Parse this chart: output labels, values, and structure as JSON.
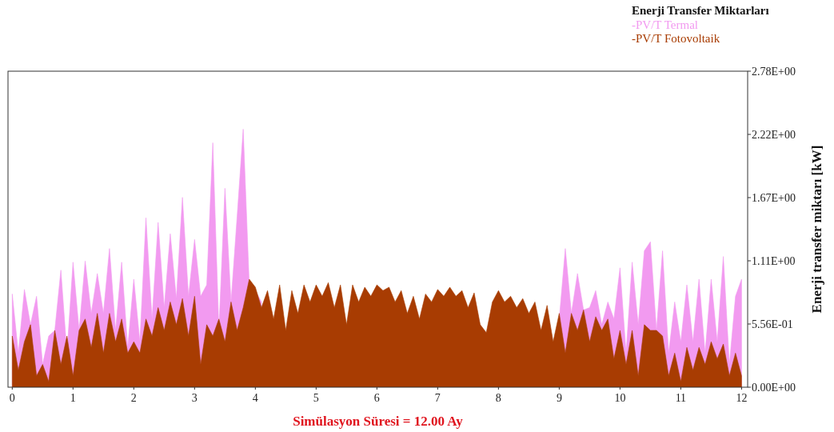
{
  "chart_data": {
    "type": "area",
    "legend_title": "Enerji Transfer Miktarları",
    "legend": "top right",
    "xlabel": "Simülasyon Süresi = 12.00 Ay",
    "ylabel": "Enerji transfer miktarı [kW]",
    "xlim": [
      -0.07,
      12.1
    ],
    "xticks": [
      0,
      1,
      2,
      3,
      4,
      5,
      6,
      7,
      8,
      9,
      10,
      11,
      12
    ],
    "ylim": [
      0,
      2.78
    ],
    "yticks": [
      {
        "value": 0,
        "label": "0.00E+00"
      },
      {
        "value": 0.556,
        "label": "5.56E-01"
      },
      {
        "value": 1.112,
        "label": "1.11E+00"
      },
      {
        "value": 1.668,
        "label": "1.67E+00"
      },
      {
        "value": 2.224,
        "label": "2.22E+00"
      },
      {
        "value": 2.78,
        "label": "2.78E+00"
      }
    ],
    "grid": false,
    "x": [
      0,
      0.1,
      0.2,
      0.3,
      0.4,
      0.5,
      0.6,
      0.7,
      0.8,
      0.9,
      1,
      1.1,
      1.2,
      1.3,
      1.4,
      1.5,
      1.6,
      1.7,
      1.8,
      1.9,
      2,
      2.1,
      2.2,
      2.3,
      2.4,
      2.5,
      2.6,
      2.7,
      2.8,
      2.9,
      3,
      3.1,
      3.2,
      3.3,
      3.4,
      3.5,
      3.6,
      3.7,
      3.8,
      3.9,
      4,
      4.1,
      4.2,
      4.3,
      4.4,
      4.5,
      4.6,
      4.7,
      4.8,
      4.9,
      5,
      5.1,
      5.2,
      5.3,
      5.4,
      5.5,
      5.6,
      5.7,
      5.8,
      5.9,
      6,
      6.1,
      6.2,
      6.3,
      6.4,
      6.5,
      6.6,
      6.7,
      6.8,
      6.9,
      7,
      7.1,
      7.2,
      7.3,
      7.4,
      7.5,
      7.6,
      7.7,
      7.8,
      7.9,
      8,
      8.1,
      8.2,
      8.3,
      8.4,
      8.5,
      8.6,
      8.7,
      8.8,
      8.9,
      9,
      9.1,
      9.2,
      9.3,
      9.4,
      9.5,
      9.6,
      9.7,
      9.8,
      9.9,
      10,
      10.1,
      10.2,
      10.3,
      10.4,
      10.5,
      10.6,
      10.7,
      10.8,
      10.9,
      11,
      11.1,
      11.2,
      11.3,
      11.4,
      11.5,
      11.6,
      11.7,
      11.8,
      11.9,
      12
    ],
    "series": [
      {
        "name": "-PV/T Termal",
        "color": "#f29af0",
        "values": [
          0.82,
          0.3,
          0.86,
          0.55,
          0.8,
          0.2,
          0.45,
          0.5,
          1.03,
          0.3,
          1.1,
          0.5,
          1.11,
          0.65,
          1.0,
          0.65,
          1.22,
          0.5,
          1.1,
          0.35,
          0.95,
          0.4,
          1.49,
          0.6,
          1.45,
          0.7,
          1.35,
          0.78,
          1.67,
          0.8,
          1.3,
          0.8,
          0.9,
          2.15,
          0.5,
          1.75,
          0.75,
          1.5,
          2.27,
          0.9,
          0.85,
          0.75,
          null,
          null,
          null,
          null,
          null,
          null,
          null,
          null,
          null,
          null,
          null,
          null,
          null,
          null,
          null,
          null,
          null,
          null,
          null,
          null,
          null,
          null,
          null,
          null,
          null,
          null,
          null,
          null,
          null,
          null,
          null,
          null,
          null,
          null,
          null,
          null,
          null,
          null,
          null,
          null,
          null,
          null,
          null,
          null,
          null,
          null,
          null,
          null,
          0.6,
          1.22,
          0.65,
          1.0,
          0.68,
          0.7,
          0.85,
          0.55,
          0.75,
          0.6,
          1.05,
          0.3,
          1.1,
          0.55,
          1.2,
          1.28,
          0.5,
          1.2,
          0.3,
          0.75,
          0.4,
          0.9,
          0.4,
          0.95,
          0.3,
          0.95,
          0.4,
          1.15,
          0.2,
          0.8,
          0.95
        ]
      },
      {
        "name": "-PV/T Fotovoltaik",
        "color": "#a83c02",
        "values": [
          0.45,
          0.15,
          0.4,
          0.55,
          0.1,
          0.2,
          0.05,
          0.5,
          0.2,
          0.45,
          0.1,
          0.5,
          0.6,
          0.35,
          0.65,
          0.3,
          0.65,
          0.4,
          0.6,
          0.3,
          0.4,
          0.3,
          0.6,
          0.45,
          0.7,
          0.5,
          0.75,
          0.55,
          0.78,
          0.45,
          0.8,
          0.2,
          0.55,
          0.45,
          0.6,
          0.4,
          0.75,
          0.5,
          0.7,
          0.95,
          0.88,
          0.7,
          0.85,
          0.6,
          0.9,
          0.5,
          0.85,
          0.65,
          0.9,
          0.75,
          0.9,
          0.8,
          0.92,
          0.7,
          0.9,
          0.55,
          0.9,
          0.75,
          0.88,
          0.8,
          0.9,
          0.85,
          0.88,
          0.75,
          0.85,
          0.65,
          0.8,
          0.6,
          0.82,
          0.75,
          0.86,
          0.8,
          0.88,
          0.8,
          0.85,
          0.7,
          0.83,
          0.55,
          0.48,
          0.75,
          0.85,
          0.75,
          0.8,
          0.7,
          0.78,
          0.65,
          0.75,
          0.5,
          0.72,
          0.4,
          0.65,
          0.3,
          0.65,
          0.5,
          0.68,
          0.4,
          0.62,
          0.5,
          0.6,
          0.25,
          0.5,
          0.2,
          0.5,
          0.1,
          0.55,
          0.5,
          0.5,
          0.45,
          0.1,
          0.3,
          0.05,
          0.35,
          0.15,
          0.35,
          0.2,
          0.4,
          0.25,
          0.38,
          0.1,
          0.3,
          0.1
        ]
      }
    ]
  }
}
